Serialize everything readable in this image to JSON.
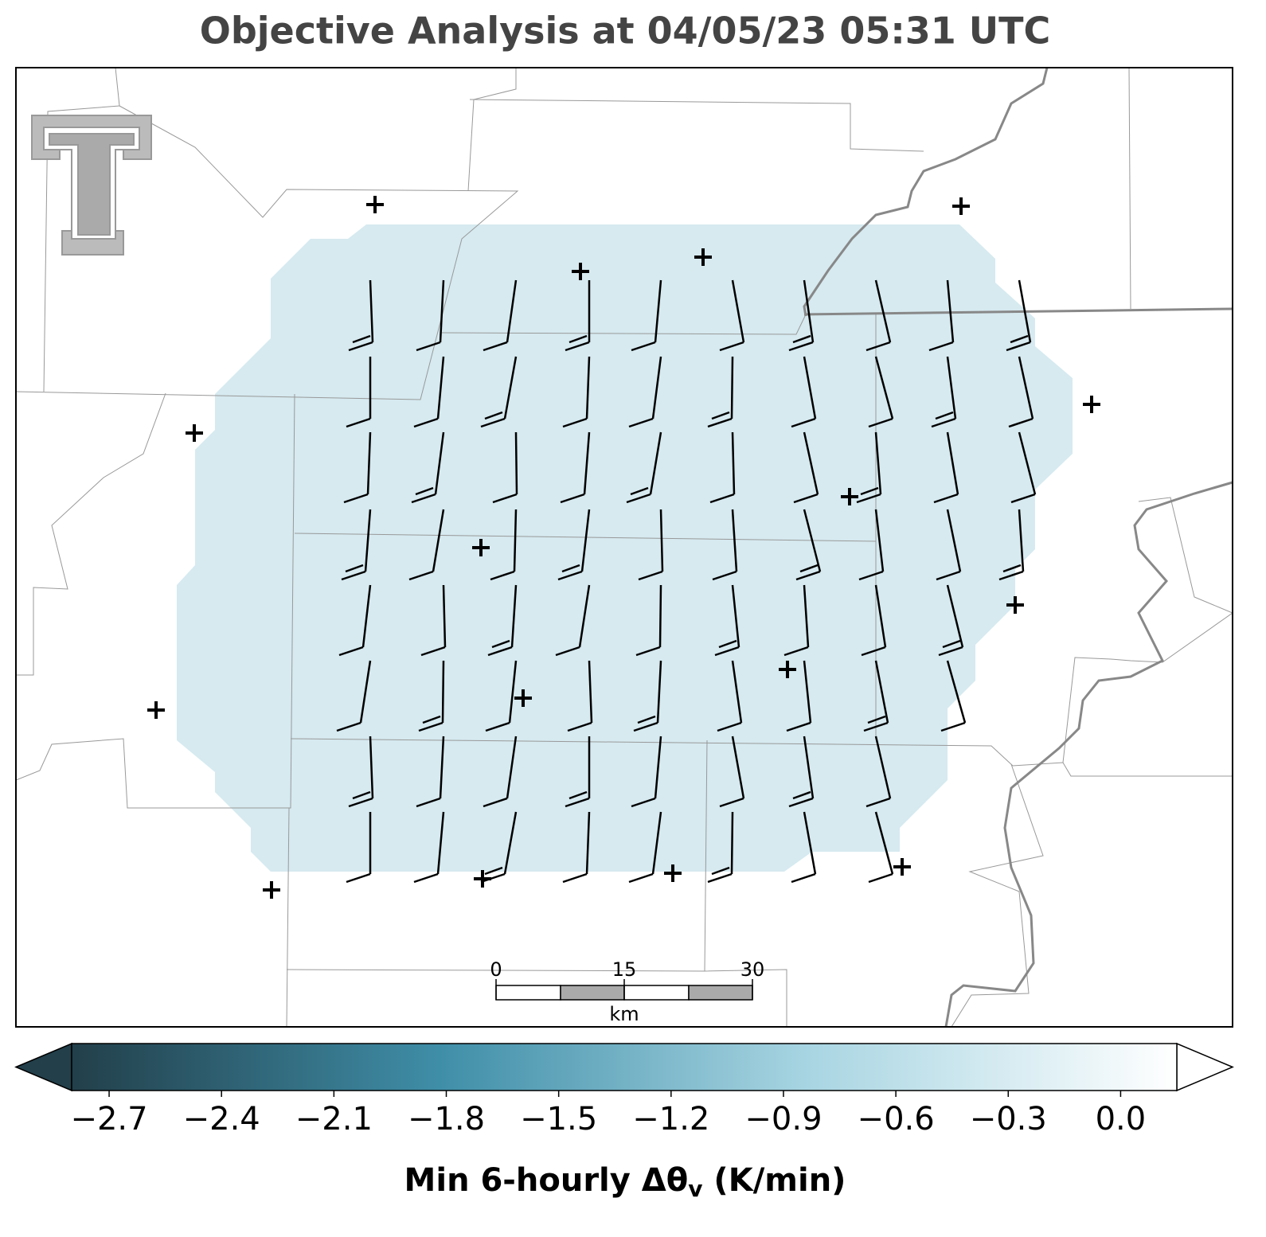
{
  "title": "Objective Analysis at 04/05/23 05:31 UTC",
  "colorbar": {
    "clim": [
      -2.8,
      0.15
    ],
    "ticks": [
      {
        "value": -2.7,
        "label": "−2.7"
      },
      {
        "value": -2.4,
        "label": "−2.4"
      },
      {
        "value": -2.1,
        "label": "−2.1"
      },
      {
        "value": -1.8,
        "label": "−1.8"
      },
      {
        "value": -1.5,
        "label": "−1.5"
      },
      {
        "value": -1.2,
        "label": "−1.2"
      },
      {
        "value": -0.9,
        "label": "−0.9"
      },
      {
        "value": -0.6,
        "label": "−0.6"
      },
      {
        "value": -0.3,
        "label": "−0.3"
      },
      {
        "value": 0.0,
        "label": "0.0"
      }
    ],
    "colormap": [
      "#223f4a",
      "#3f8ea8",
      "#a8d5e2",
      "#ffffff"
    ],
    "label": {
      "prefix": "Min 6-hourly Δθ",
      "subscript": "v",
      "suffix": " (K/min)"
    }
  },
  "field_color": "#d6eaf0",
  "scale_bar": {
    "ticks": [
      0,
      15,
      30
    ],
    "unit": "km"
  }
}
